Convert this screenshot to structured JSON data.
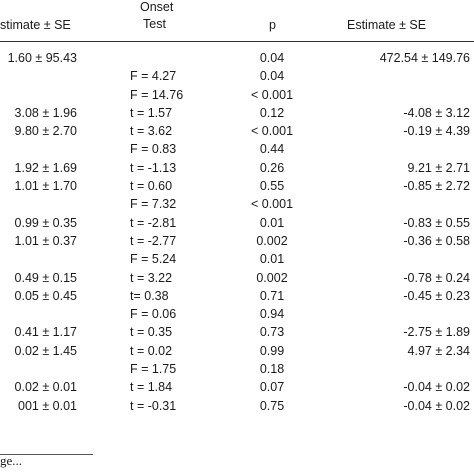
{
  "header": {
    "col1": "stimate ± SE",
    "col2_top": "Onset",
    "col2": "Test",
    "col3": "p",
    "col4": "Estimate ± SE"
  },
  "rows": [
    {
      "est1": "1.60 ± 95.43",
      "test": "",
      "p": "0.04",
      "est2": "472.54 ± 149.76"
    },
    {
      "est1": "",
      "test": "F = 4.27",
      "p": "0.04",
      "est2": ""
    },
    {
      "est1": "",
      "test": "F = 14.76",
      "p": "< 0.001",
      "est2": ""
    },
    {
      "est1": "3.08 ± 1.96",
      "test": "t = 1.57",
      "p": "0.12",
      "est2": "-4.08 ± 3.12"
    },
    {
      "est1": "9.80 ± 2.70",
      "test": "t = 3.62",
      "p": "< 0.001",
      "est2": "-0.19 ± 4.39"
    },
    {
      "est1": "",
      "test": "F = 0.83",
      "p": "0.44",
      "est2": ""
    },
    {
      "est1": "1.92 ± 1.69",
      "test": "t = -1.13",
      "p": "0.26",
      "est2": "9.21 ± 2.71"
    },
    {
      "est1": "1.01 ± 1.70",
      "test": "t = 0.60",
      "p": "0.55",
      "est2": "-0.85 ± 2.72"
    },
    {
      "est1": "",
      "test": "F = 7.32",
      "p": "< 0.001",
      "est2": ""
    },
    {
      "est1": "0.99 ± 0.35",
      "test": "t = -2.81",
      "p": "0.01",
      "est2": "-0.83 ± 0.55"
    },
    {
      "est1": "1.01 ± 0.37",
      "test": "t = -2.77",
      "p": "0.002",
      "est2": "-0.36 ± 0.58"
    },
    {
      "est1": "",
      "test": "F = 5.24",
      "p": "0.01",
      "est2": ""
    },
    {
      "est1": "0.49 ± 0.15",
      "test": "t = 3.22",
      "p": "0.002",
      "est2": "-0.78 ± 0.24"
    },
    {
      "est1": "0.05 ± 0.45",
      "test": "t= 0.38",
      "p": "0.71",
      "est2": "-0.45 ± 0.23"
    },
    {
      "est1": "",
      "test": "F = 0.06",
      "p": "0.94",
      "est2": ""
    },
    {
      "est1": "0.41 ± 1.17",
      "test": "t = 0.35",
      "p": "0.73",
      "est2": "-2.75 ± 1.89"
    },
    {
      "est1": "0.02 ± 1.45",
      "test": "t = 0.02",
      "p": "0.99",
      "est2": "4.97 ± 2.34"
    },
    {
      "est1": "",
      "test": "F = 1.75",
      "p": "0.18",
      "est2": ""
    },
    {
      "est1": "0.02 ± 0.01",
      "test": "t = 1.84",
      "p": "0.07",
      "est2": "-0.04 ± 0.02"
    },
    {
      "est1": "001 ± 0.01",
      "test": "t = -0.31",
      "p": "0.75",
      "est2": "-0.04 ± 0.02"
    }
  ],
  "footnote": "ge..."
}
